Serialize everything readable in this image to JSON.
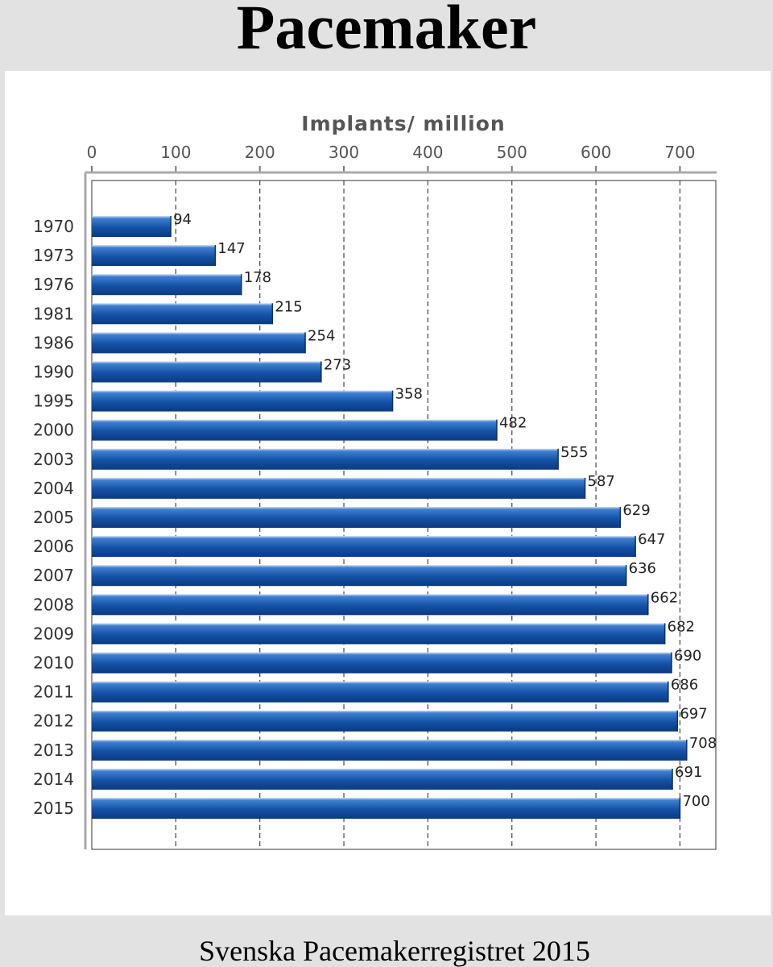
{
  "header": {
    "title": "Pacemaker"
  },
  "footer": {
    "text": "Svenska Pacemakerregistret 2015"
  },
  "colors": {
    "bar": "#1452a6",
    "bar_highlight": "#3f7fd0",
    "grid": "#444444",
    "axis": "#999999"
  },
  "chart_data": {
    "type": "bar",
    "orientation": "horizontal",
    "title": "Implants/ million",
    "xlabel": "Implants/ million",
    "ylabel": "",
    "xlim": [
      0,
      750
    ],
    "xticks": [
      0,
      100,
      200,
      300,
      400,
      500,
      600,
      700
    ],
    "x_axis_position": "top",
    "grid": "vertical-dashed",
    "categories": [
      "1970",
      "1973",
      "1976",
      "1981",
      "1986",
      "1990",
      "1995",
      "2000",
      "2003",
      "2004",
      "2005",
      "2006",
      "2007",
      "2008",
      "2009",
      "2010",
      "2011",
      "2012",
      "2013",
      "2014",
      "2015"
    ],
    "values": [
      94,
      147,
      178,
      215,
      254,
      273,
      358,
      482,
      555,
      587,
      629,
      647,
      636,
      662,
      682,
      690,
      686,
      697,
      708,
      691,
      700
    ],
    "data_labels": [
      "94",
      "147",
      "178",
      "215",
      "254",
      "273",
      "358",
      "482",
      "555",
      "587",
      "629",
      "647",
      "636",
      "662",
      "682",
      "690",
      "686",
      "697",
      "708",
      "691",
      "700"
    ]
  }
}
